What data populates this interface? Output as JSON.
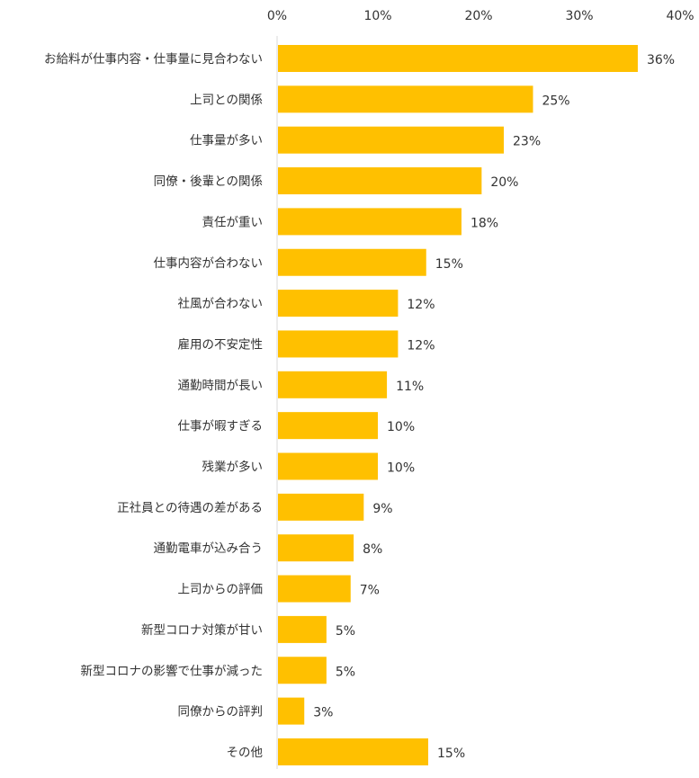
{
  "chart_data": {
    "type": "bar",
    "orientation": "horizontal",
    "xlim": [
      0,
      40
    ],
    "x_ticks": [
      "0%",
      "10%",
      "20%",
      "30%",
      "40%"
    ],
    "x_tick_values": [
      0,
      10,
      20,
      30,
      40
    ],
    "grid": false,
    "bar_color": "#FFC000",
    "axis_color": "#d9d9d9",
    "categories": [
      "お給料が仕事内容・仕事量に見合わない",
      "上司との関係",
      "仕事量が多い",
      "同僚・後輩との関係",
      "責任が重い",
      "仕事内容が合わない",
      "社風が合わない",
      "雇用の不安定性",
      "通勤時間が長い",
      "仕事が暇すぎる",
      "残業が多い",
      "正社員との待遇の差がある",
      "通勤電車が込み合う",
      "上司からの評価",
      "新型コロナ対策が甘い",
      "新型コロナの影響で仕事が減った",
      "同僚からの評判",
      "その他"
    ],
    "values": [
      35.8,
      25.4,
      22.5,
      20.3,
      18.3,
      14.8,
      12.0,
      12.0,
      10.9,
      10.0,
      10.0,
      8.6,
      7.6,
      7.3,
      4.9,
      4.9,
      2.7,
      15.0
    ],
    "value_labels": [
      "36%",
      "25%",
      "23%",
      "20%",
      "18%",
      "15%",
      "12%",
      "12%",
      "11%",
      "10%",
      "10%",
      "9%",
      "8%",
      "7%",
      "5%",
      "5%",
      "3%",
      "15%"
    ]
  }
}
